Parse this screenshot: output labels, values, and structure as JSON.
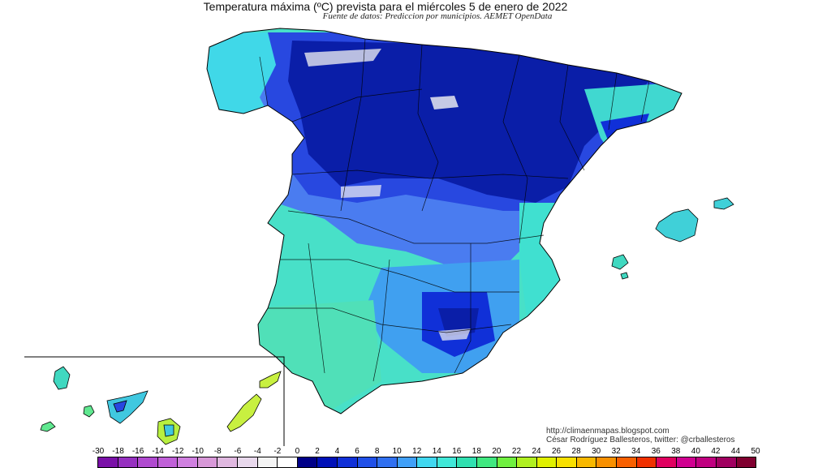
{
  "title": "Temperatura máxima (ºC) prevista para el miércoles 5 de enero de 2022",
  "subtitle": "Fuente de datos: Prediccion por municipios. AEMET OpenData",
  "credits": {
    "url": "http://climaenmapas.blogspot.com",
    "author": "César Rodríguez Ballesteros, twitter: @crballesteros"
  },
  "legend": {
    "labels": [
      "-30",
      "-18",
      "-16",
      "-14",
      "-12",
      "-10",
      "-8",
      "-6",
      "-4",
      "-2",
      "0",
      "2",
      "4",
      "6",
      "8",
      "10",
      "12",
      "14",
      "16",
      "18",
      "20",
      "22",
      "24",
      "26",
      "28",
      "30",
      "32",
      "34",
      "36",
      "38",
      "40",
      "42",
      "44",
      "50"
    ],
    "colors": [
      "#7a10a8",
      "#9630c0",
      "#b04ad0",
      "#c060d8",
      "#d080e0",
      "#d898d8",
      "#e0b8e0",
      "#e8d8ec",
      "#f4f4f4",
      "#ffffff",
      "#000088",
      "#0010b8",
      "#1030d8",
      "#2050e8",
      "#3070f0",
      "#40a0f8",
      "#40d8f0",
      "#40e8d8",
      "#30e0b0",
      "#40e880",
      "#70f040",
      "#b0f020",
      "#e0f000",
      "#f8e000",
      "#f8b800",
      "#f89000",
      "#f86000",
      "#f03000",
      "#e00060",
      "#d00090",
      "#c00080",
      "#a00060",
      "#800030"
    ]
  },
  "map": {
    "region": "España peninsular, Baleares y Canarias",
    "palette": {
      "deep_blue": "#0a1ea8",
      "blue": "#2848e0",
      "light_blue": "#4a7cf0",
      "sky": "#40c8f0",
      "cyan": "#40e8d8",
      "aqua": "#48e0c0",
      "green": "#60e890",
      "lime": "#b8f040",
      "snow": "#f4f4f4",
      "border": "#000000"
    }
  }
}
